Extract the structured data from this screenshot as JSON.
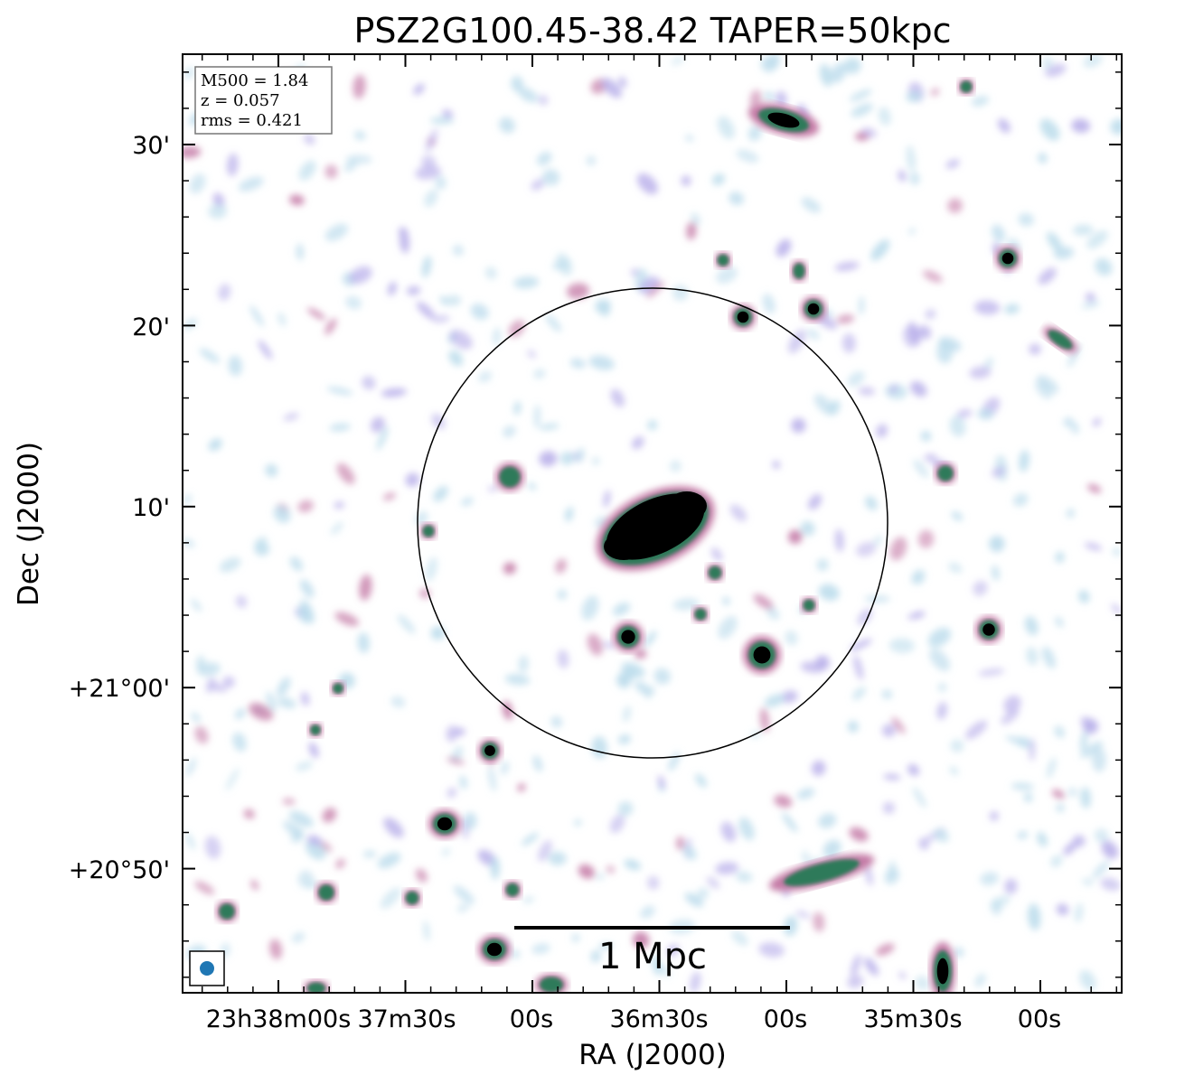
{
  "title": "PSZ2G100.45-38.42 TAPER=50kpc",
  "axes": {
    "xlabel": "RA (J2000)",
    "ylabel": "Dec (J2000)",
    "x_ticks": [
      "23h38m00s",
      "37m30s",
      "00s",
      "36m30s",
      "00s",
      "35m30s",
      "00s"
    ],
    "y_ticks": [
      "30'",
      "20'",
      "10'",
      "+21°00'",
      "+20°50'"
    ]
  },
  "info_box": {
    "lines": [
      "M500 = 1.84",
      "z = 0.057",
      "rms = 0.421"
    ]
  },
  "scalebar": {
    "label": "1 Mpc"
  },
  "colors": {
    "noise_light": "#bcdcec",
    "noise_mid": "#b9b0ea",
    "pink": "#c47aa6",
    "green": "#2f7a5a",
    "core": "#000000",
    "beam": "#1f77b4"
  }
}
